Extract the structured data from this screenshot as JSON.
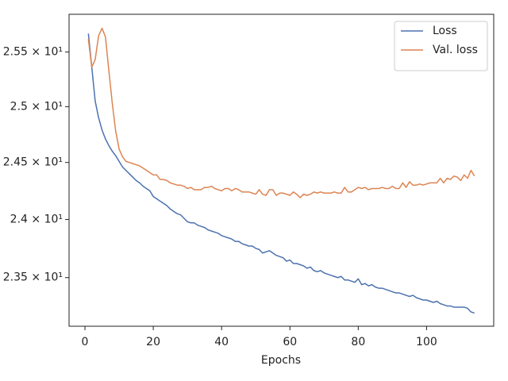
{
  "chart_data": {
    "type": "line",
    "xlabel": "Epochs",
    "x": [
      1,
      2,
      3,
      4,
      5,
      6,
      7,
      8,
      9,
      10,
      11,
      12,
      13,
      14,
      15,
      16,
      17,
      18,
      19,
      20,
      21,
      22,
      23,
      24,
      25,
      26,
      27,
      28,
      29,
      30,
      31,
      32,
      33,
      34,
      35,
      36,
      37,
      38,
      39,
      40,
      41,
      42,
      43,
      44,
      45,
      46,
      47,
      48,
      49,
      50,
      51,
      52,
      53,
      54,
      55,
      56,
      57,
      58,
      59,
      60,
      61,
      62,
      63,
      64,
      65,
      66,
      67,
      68,
      69,
      70,
      71,
      72,
      73,
      74,
      75,
      76,
      77,
      78,
      79,
      80,
      81,
      82,
      83,
      84,
      85,
      86,
      87,
      88,
      89,
      90,
      91,
      92,
      93,
      94,
      95,
      96,
      97,
      98,
      99,
      100,
      101,
      102,
      103,
      104,
      105,
      106,
      107,
      108,
      109,
      110,
      111,
      112,
      113,
      114
    ],
    "series": [
      {
        "name": "Loss",
        "color": "#4c72b0",
        "values": [
          25.67,
          25.36,
          25.05,
          24.9,
          24.79,
          24.71,
          24.65,
          24.6,
          24.56,
          24.51,
          24.46,
          24.43,
          24.4,
          24.37,
          24.34,
          24.32,
          24.29,
          24.27,
          24.25,
          24.2,
          24.18,
          24.16,
          24.14,
          24.12,
          24.09,
          24.07,
          24.05,
          24.04,
          24.01,
          23.98,
          23.97,
          23.97,
          23.95,
          23.94,
          23.93,
          23.91,
          23.9,
          23.89,
          23.88,
          23.86,
          23.85,
          23.84,
          23.83,
          23.81,
          23.81,
          23.79,
          23.78,
          23.77,
          23.77,
          23.75,
          23.74,
          23.71,
          23.72,
          23.73,
          23.71,
          23.69,
          23.68,
          23.67,
          23.64,
          23.65,
          23.62,
          23.62,
          23.61,
          23.6,
          23.58,
          23.59,
          23.56,
          23.55,
          23.56,
          23.54,
          23.53,
          23.52,
          23.51,
          23.5,
          23.51,
          23.48,
          23.48,
          23.47,
          23.46,
          23.49,
          23.44,
          23.45,
          23.43,
          23.44,
          23.42,
          23.41,
          23.41,
          23.4,
          23.39,
          23.38,
          23.37,
          23.37,
          23.36,
          23.35,
          23.34,
          23.35,
          23.33,
          23.32,
          23.31,
          23.31,
          23.3,
          23.29,
          23.3,
          23.28,
          23.27,
          23.26,
          23.26,
          23.25,
          23.25,
          23.25,
          23.25,
          23.24,
          23.21,
          23.2
        ]
      },
      {
        "name": "Val. loss",
        "color": "#dd8452",
        "values": [
          25.62,
          25.36,
          25.43,
          25.65,
          25.72,
          25.64,
          25.33,
          25.03,
          24.78,
          24.62,
          24.55,
          24.51,
          24.5,
          24.49,
          24.48,
          24.47,
          24.45,
          24.43,
          24.41,
          24.39,
          24.39,
          24.35,
          24.35,
          24.34,
          24.32,
          24.31,
          24.3,
          24.3,
          24.29,
          24.27,
          24.28,
          24.26,
          24.26,
          24.26,
          24.28,
          24.28,
          24.29,
          24.27,
          24.26,
          24.25,
          24.27,
          24.27,
          24.25,
          24.27,
          24.26,
          24.24,
          24.24,
          24.24,
          24.23,
          24.22,
          24.26,
          24.22,
          24.21,
          24.26,
          24.26,
          24.21,
          24.23,
          24.23,
          24.22,
          24.21,
          24.24,
          24.22,
          24.19,
          24.22,
          24.21,
          24.22,
          24.24,
          24.23,
          24.24,
          24.23,
          24.23,
          24.23,
          24.24,
          24.23,
          24.23,
          24.28,
          24.24,
          24.24,
          24.26,
          24.28,
          24.27,
          24.28,
          24.26,
          24.27,
          24.27,
          24.27,
          24.28,
          24.27,
          24.27,
          24.29,
          24.27,
          24.27,
          24.32,
          24.28,
          24.33,
          24.3,
          24.3,
          24.31,
          24.3,
          24.31,
          24.32,
          24.32,
          24.32,
          24.36,
          24.32,
          24.36,
          24.35,
          24.38,
          24.37,
          24.34,
          24.39,
          24.36,
          24.43,
          24.38
        ]
      }
    ],
    "xlim": [
      -4.65,
      119.65
    ],
    "xticks": [
      0,
      20,
      40,
      60,
      80,
      100
    ],
    "ylim": [
      23.09,
      25.85
    ],
    "yscale": "log",
    "yticks": [
      {
        "value": 23.5,
        "label": "2.35 × 10¹"
      },
      {
        "value": 24,
        "label": "2.4 × 10¹"
      },
      {
        "value": 24.5,
        "label": "2.45 × 10¹"
      },
      {
        "value": 25,
        "label": "2.5 × 10¹"
      },
      {
        "value": 25.5,
        "label": "2.55 × 10¹"
      }
    ],
    "legend": "upper right"
  }
}
